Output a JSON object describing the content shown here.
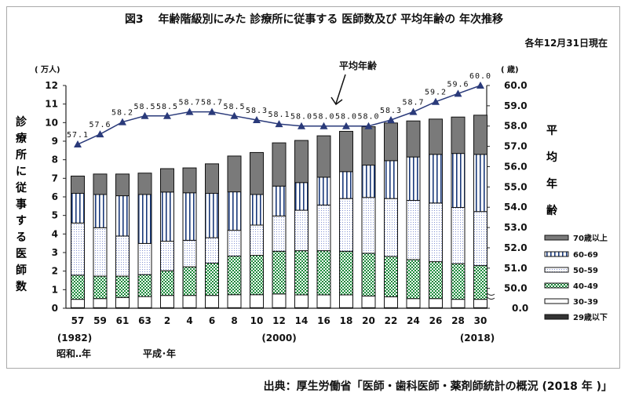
{
  "chart_data": {
    "type": "bar",
    "stacked": true,
    "title": "図3　 年齢階級別にみた 診療所に従事する 医師数及び 平均年齢の 年次推移",
    "note": "各年12月31日現在",
    "source": "出典：厚生労働省「医師・歯科医師・薬剤師統計の概況 (2018 年 )」",
    "ylabel": "診療所に従事する医師数",
    "yunit": "( 万人)",
    "ylim": [
      0,
      12
    ],
    "yticks": [
      "0",
      "1",
      "2",
      "3",
      "4",
      "5",
      "6",
      "7",
      "8",
      "9",
      "10",
      "11",
      "12"
    ],
    "y2label": "平均年齢",
    "y2unit": "( 歳)",
    "y2ticks": [
      "0.0",
      "50.0",
      "51.0",
      "52.0",
      "53.0",
      "54.0",
      "55.0",
      "56.0",
      "57.0",
      "58.0",
      "59.0",
      "60.0"
    ],
    "y2lim": [
      50,
      60
    ],
    "y2_axis_break": true,
    "line_annotation": "平均年齢",
    "categories": [
      "57",
      "59",
      "61",
      "63",
      "2",
      "4",
      "6",
      "8",
      "10",
      "12",
      "14",
      "16",
      "18",
      "20",
      "22",
      "24",
      "26",
      "28",
      "30"
    ],
    "sub_labels": [
      "(1982)",
      "(2000)",
      "(2018)"
    ],
    "era_labels": [
      "昭和‥年",
      "平成･年"
    ],
    "series": [
      {
        "name": "29歳以下",
        "color": "#333333",
        "values": [
          0.03,
          0.03,
          0.03,
          0.03,
          0.03,
          0.03,
          0.03,
          0.03,
          0.03,
          0.03,
          0.03,
          0.03,
          0.03,
          0.03,
          0.03,
          0.03,
          0.03,
          0.03,
          0.03
        ]
      },
      {
        "name": "30-39",
        "color": "#ffffff",
        "values": [
          0.45,
          0.49,
          0.55,
          0.6,
          0.66,
          0.66,
          0.66,
          0.7,
          0.7,
          0.74,
          0.69,
          0.69,
          0.69,
          0.63,
          0.59,
          0.49,
          0.49,
          0.45,
          0.45
        ]
      },
      {
        "name": "40-49",
        "color": "#1a8a3a",
        "values": [
          1.3,
          1.21,
          1.15,
          1.18,
          1.33,
          1.54,
          1.74,
          2.08,
          2.12,
          2.3,
          2.38,
          2.38,
          2.35,
          2.3,
          2.17,
          2.1,
          1.99,
          1.92,
          1.82
        ]
      },
      {
        "name": "50-59",
        "color": "#8090d0",
        "values": [
          2.81,
          2.61,
          2.16,
          1.68,
          1.59,
          1.43,
          1.37,
          1.39,
          1.63,
          1.9,
          2.18,
          2.46,
          2.84,
          3.01,
          3.12,
          3.19,
          3.16,
          3.03,
          2.91
        ]
      },
      {
        "name": "60-69",
        "color": "#1a3a7a",
        "values": [
          1.6,
          1.79,
          2.17,
          2.64,
          2.65,
          2.56,
          2.39,
          2.07,
          1.65,
          1.61,
          1.49,
          1.5,
          1.45,
          1.74,
          2.04,
          2.34,
          2.62,
          2.91,
          3.08
        ]
      },
      {
        "name": "70歳以上",
        "color": "#808080",
        "values": [
          0.93,
          1.1,
          1.17,
          1.15,
          1.26,
          1.34,
          1.59,
          1.93,
          2.26,
          2.33,
          2.27,
          2.23,
          2.17,
          2.07,
          2.03,
          1.94,
          1.9,
          1.96,
          2.11
        ]
      }
    ],
    "line": {
      "name": "平均年齢",
      "color": "#2a3a7a",
      "values": [
        57.1,
        57.6,
        58.2,
        58.5,
        58.5,
        58.7,
        58.7,
        58.5,
        58.3,
        58.1,
        58.0,
        58.0,
        58.0,
        58.0,
        58.3,
        58.7,
        59.2,
        59.6,
        60.0
      ],
      "labels": [
        "57.1",
        "57.6",
        "58.2",
        "58.5",
        "58.5",
        "58.7",
        "58.7",
        "58.5",
        "58.3",
        "58.1",
        "58.0",
        "58.0",
        "58.0",
        "58.0",
        "58.3",
        "58.7",
        "59.2",
        "59.6",
        "60.0"
      ]
    },
    "legend_position": "bottom-right",
    "legend_order": [
      "70歳以上",
      "60-69",
      "50-59",
      "40-49",
      "30-39",
      "29歳以下"
    ]
  }
}
